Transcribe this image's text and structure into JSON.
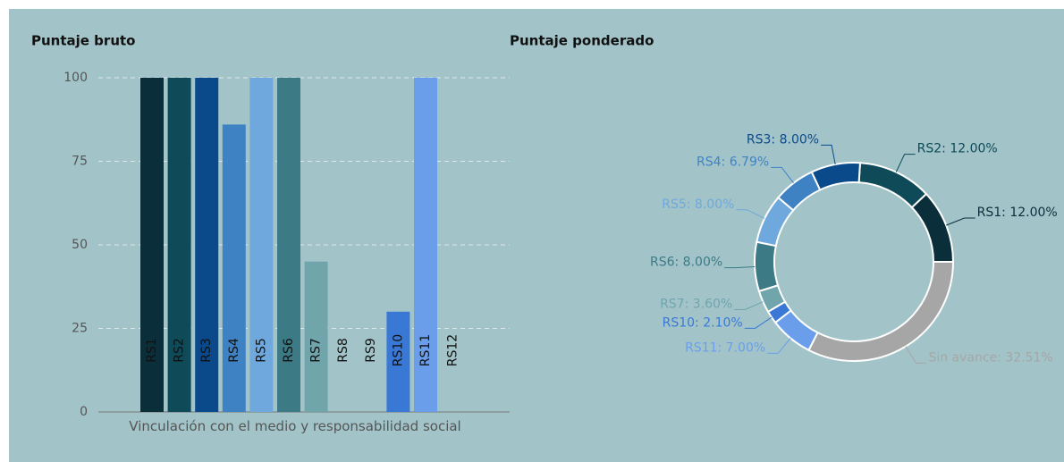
{
  "chart_data": [
    {
      "type": "bar",
      "title": "Puntaje bruto",
      "categories": [
        "RS1",
        "RS2",
        "RS3",
        "RS4",
        "RS5",
        "RS6",
        "RS7",
        "RS8",
        "RS9",
        "RS10",
        "RS11",
        "RS12"
      ],
      "values": [
        100,
        100,
        100,
        86,
        100,
        100,
        45,
        0,
        0,
        30,
        100,
        0
      ],
      "colors": [
        "#0b2f3a",
        "#0e4a57",
        "#0b4a8a",
        "#3f82c4",
        "#6fa8dc",
        "#3c7a86",
        "#6fa5ab",
        "#7fb0b8",
        "#5a8fd0",
        "#3a78d6",
        "#6b9eea",
        "#8ab4f0"
      ],
      "ylim": [
        0,
        100
      ],
      "yticks": [
        0,
        25,
        50,
        75,
        100
      ],
      "grid": true,
      "xlabel": "Vinculación con el medio y responsabilidad social"
    },
    {
      "type": "pie",
      "title": "Puntaje ponderado",
      "donut": true,
      "values": [
        12,
        12,
        8,
        6.79,
        8,
        8,
        3.6,
        2.1,
        7,
        32.51
      ],
      "value_labels": [
        "RS1: 12.00%",
        "RS2: 12.00%",
        "RS3: 8.00%",
        "RS4: 6.79%",
        "RS5: 8.00%",
        "RS6: 8.00%",
        "RS7: 3.60%",
        "RS10: 2.10%",
        "RS11: 7.00%",
        "Sin avance: 32.51%"
      ],
      "colors": [
        "#0b2f3a",
        "#0e4a57",
        "#0b4a8a",
        "#3f82c4",
        "#6fa8dc",
        "#3c7a86",
        "#6fa5ab",
        "#3a78d6",
        "#6b9eea",
        "#a6a6a6"
      ]
    }
  ]
}
